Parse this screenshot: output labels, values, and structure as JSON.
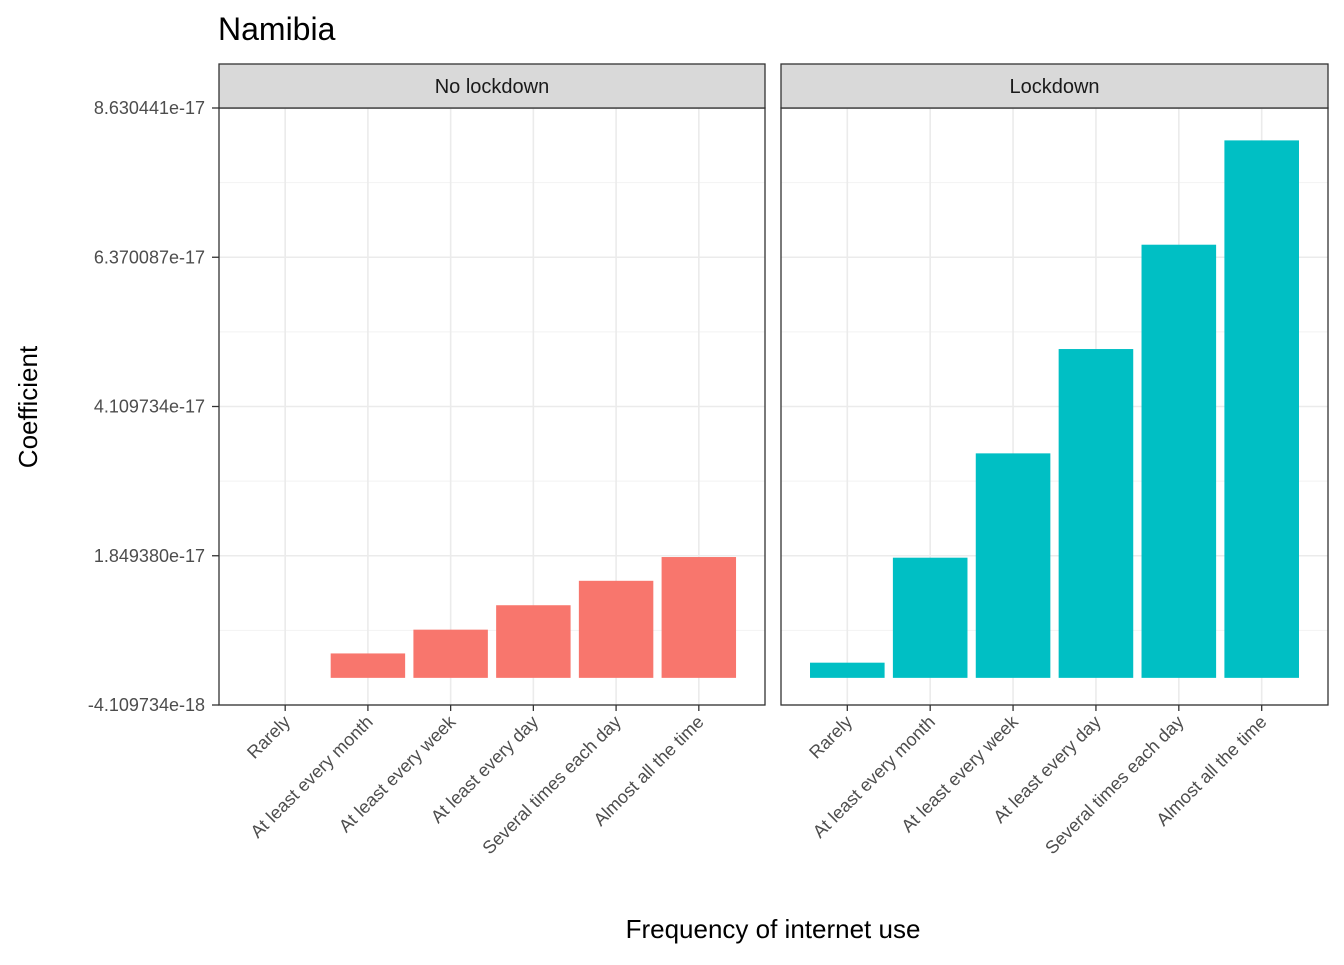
{
  "chart_data": {
    "type": "bar",
    "title": "Namibia",
    "xlabel": "Frequency of internet use",
    "ylabel": "Coefficient",
    "categories": [
      "Rarely",
      "At least every month",
      "At least every week",
      "At least every day",
      "Several times each day",
      "Almost all the time"
    ],
    "yticks": [
      "8.630441e-17",
      "6.370087e-17",
      "4.109734e-17",
      "1.849380e-17",
      "-4.109734e-18"
    ],
    "ylim": [
      -4.109734e-18,
      8.630441e-17
    ],
    "grid": true,
    "legend": "none",
    "panels": [
      {
        "label": "No lockdown",
        "color": "#F8766D",
        "values": [
          0,
          3.7e-18,
          7.3e-18,
          1.1e-17,
          1.47e-17,
          1.83e-17
        ]
      },
      {
        "label": "Lockdown",
        "color": "#00BFC4",
        "values": [
          2.3e-18,
          1.82e-17,
          3.4e-17,
          4.98e-17,
          6.56e-17,
          8.14e-17
        ]
      }
    ]
  }
}
